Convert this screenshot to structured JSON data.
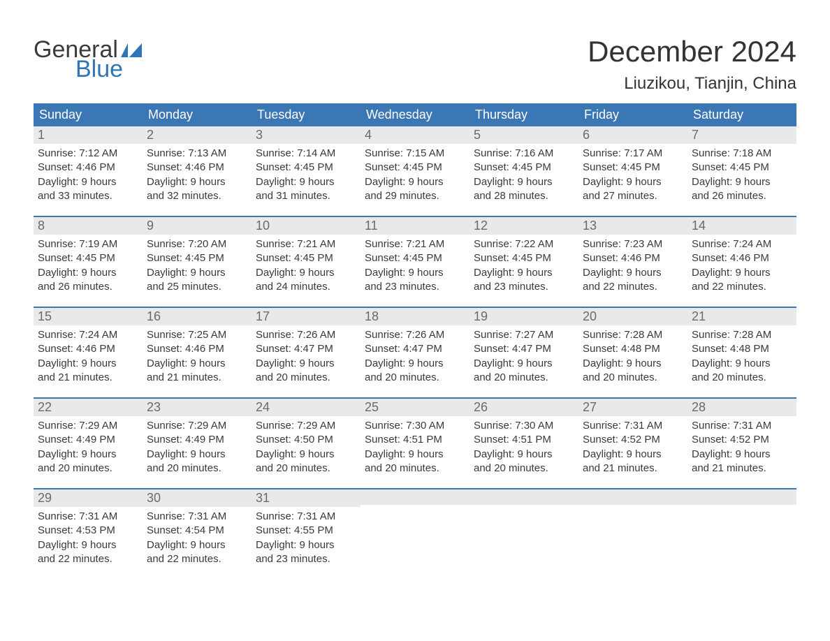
{
  "colors": {
    "header_bg": "#3b76b5",
    "header_text": "#ffffff",
    "daynum_bg": "#e9e9e9",
    "daynum_text": "#6a6a6a",
    "body_text": "#3a3a3a",
    "accent_blue": "#2e75b6",
    "page_bg": "#ffffff",
    "week_divider": "#3b76b5"
  },
  "typography": {
    "title_fontsize": 42,
    "location_fontsize": 24,
    "weekday_fontsize": 18,
    "daynum_fontsize": 18,
    "body_fontsize": 15,
    "logo_fontsize": 34
  },
  "logo": {
    "line1": "General",
    "line2": "Blue"
  },
  "title": "December 2024",
  "location": "Liuzikou, Tianjin, China",
  "weekdays": [
    "Sunday",
    "Monday",
    "Tuesday",
    "Wednesday",
    "Thursday",
    "Friday",
    "Saturday"
  ],
  "weeks": [
    [
      {
        "num": "1",
        "sunrise": "Sunrise: 7:12 AM",
        "sunset": "Sunset: 4:46 PM",
        "day1": "Daylight: 9 hours",
        "day2": "and 33 minutes."
      },
      {
        "num": "2",
        "sunrise": "Sunrise: 7:13 AM",
        "sunset": "Sunset: 4:46 PM",
        "day1": "Daylight: 9 hours",
        "day2": "and 32 minutes."
      },
      {
        "num": "3",
        "sunrise": "Sunrise: 7:14 AM",
        "sunset": "Sunset: 4:45 PM",
        "day1": "Daylight: 9 hours",
        "day2": "and 31 minutes."
      },
      {
        "num": "4",
        "sunrise": "Sunrise: 7:15 AM",
        "sunset": "Sunset: 4:45 PM",
        "day1": "Daylight: 9 hours",
        "day2": "and 29 minutes."
      },
      {
        "num": "5",
        "sunrise": "Sunrise: 7:16 AM",
        "sunset": "Sunset: 4:45 PM",
        "day1": "Daylight: 9 hours",
        "day2": "and 28 minutes."
      },
      {
        "num": "6",
        "sunrise": "Sunrise: 7:17 AM",
        "sunset": "Sunset: 4:45 PM",
        "day1": "Daylight: 9 hours",
        "day2": "and 27 minutes."
      },
      {
        "num": "7",
        "sunrise": "Sunrise: 7:18 AM",
        "sunset": "Sunset: 4:45 PM",
        "day1": "Daylight: 9 hours",
        "day2": "and 26 minutes."
      }
    ],
    [
      {
        "num": "8",
        "sunrise": "Sunrise: 7:19 AM",
        "sunset": "Sunset: 4:45 PM",
        "day1": "Daylight: 9 hours",
        "day2": "and 26 minutes."
      },
      {
        "num": "9",
        "sunrise": "Sunrise: 7:20 AM",
        "sunset": "Sunset: 4:45 PM",
        "day1": "Daylight: 9 hours",
        "day2": "and 25 minutes."
      },
      {
        "num": "10",
        "sunrise": "Sunrise: 7:21 AM",
        "sunset": "Sunset: 4:45 PM",
        "day1": "Daylight: 9 hours",
        "day2": "and 24 minutes."
      },
      {
        "num": "11",
        "sunrise": "Sunrise: 7:21 AM",
        "sunset": "Sunset: 4:45 PM",
        "day1": "Daylight: 9 hours",
        "day2": "and 23 minutes."
      },
      {
        "num": "12",
        "sunrise": "Sunrise: 7:22 AM",
        "sunset": "Sunset: 4:45 PM",
        "day1": "Daylight: 9 hours",
        "day2": "and 23 minutes."
      },
      {
        "num": "13",
        "sunrise": "Sunrise: 7:23 AM",
        "sunset": "Sunset: 4:46 PM",
        "day1": "Daylight: 9 hours",
        "day2": "and 22 minutes."
      },
      {
        "num": "14",
        "sunrise": "Sunrise: 7:24 AM",
        "sunset": "Sunset: 4:46 PM",
        "day1": "Daylight: 9 hours",
        "day2": "and 22 minutes."
      }
    ],
    [
      {
        "num": "15",
        "sunrise": "Sunrise: 7:24 AM",
        "sunset": "Sunset: 4:46 PM",
        "day1": "Daylight: 9 hours",
        "day2": "and 21 minutes."
      },
      {
        "num": "16",
        "sunrise": "Sunrise: 7:25 AM",
        "sunset": "Sunset: 4:46 PM",
        "day1": "Daylight: 9 hours",
        "day2": "and 21 minutes."
      },
      {
        "num": "17",
        "sunrise": "Sunrise: 7:26 AM",
        "sunset": "Sunset: 4:47 PM",
        "day1": "Daylight: 9 hours",
        "day2": "and 20 minutes."
      },
      {
        "num": "18",
        "sunrise": "Sunrise: 7:26 AM",
        "sunset": "Sunset: 4:47 PM",
        "day1": "Daylight: 9 hours",
        "day2": "and 20 minutes."
      },
      {
        "num": "19",
        "sunrise": "Sunrise: 7:27 AM",
        "sunset": "Sunset: 4:47 PM",
        "day1": "Daylight: 9 hours",
        "day2": "and 20 minutes."
      },
      {
        "num": "20",
        "sunrise": "Sunrise: 7:28 AM",
        "sunset": "Sunset: 4:48 PM",
        "day1": "Daylight: 9 hours",
        "day2": "and 20 minutes."
      },
      {
        "num": "21",
        "sunrise": "Sunrise: 7:28 AM",
        "sunset": "Sunset: 4:48 PM",
        "day1": "Daylight: 9 hours",
        "day2": "and 20 minutes."
      }
    ],
    [
      {
        "num": "22",
        "sunrise": "Sunrise: 7:29 AM",
        "sunset": "Sunset: 4:49 PM",
        "day1": "Daylight: 9 hours",
        "day2": "and 20 minutes."
      },
      {
        "num": "23",
        "sunrise": "Sunrise: 7:29 AM",
        "sunset": "Sunset: 4:49 PM",
        "day1": "Daylight: 9 hours",
        "day2": "and 20 minutes."
      },
      {
        "num": "24",
        "sunrise": "Sunrise: 7:29 AM",
        "sunset": "Sunset: 4:50 PM",
        "day1": "Daylight: 9 hours",
        "day2": "and 20 minutes."
      },
      {
        "num": "25",
        "sunrise": "Sunrise: 7:30 AM",
        "sunset": "Sunset: 4:51 PM",
        "day1": "Daylight: 9 hours",
        "day2": "and 20 minutes."
      },
      {
        "num": "26",
        "sunrise": "Sunrise: 7:30 AM",
        "sunset": "Sunset: 4:51 PM",
        "day1": "Daylight: 9 hours",
        "day2": "and 20 minutes."
      },
      {
        "num": "27",
        "sunrise": "Sunrise: 7:31 AM",
        "sunset": "Sunset: 4:52 PM",
        "day1": "Daylight: 9 hours",
        "day2": "and 21 minutes."
      },
      {
        "num": "28",
        "sunrise": "Sunrise: 7:31 AM",
        "sunset": "Sunset: 4:52 PM",
        "day1": "Daylight: 9 hours",
        "day2": "and 21 minutes."
      }
    ],
    [
      {
        "num": "29",
        "sunrise": "Sunrise: 7:31 AM",
        "sunset": "Sunset: 4:53 PM",
        "day1": "Daylight: 9 hours",
        "day2": "and 22 minutes."
      },
      {
        "num": "30",
        "sunrise": "Sunrise: 7:31 AM",
        "sunset": "Sunset: 4:54 PM",
        "day1": "Daylight: 9 hours",
        "day2": "and 22 minutes."
      },
      {
        "num": "31",
        "sunrise": "Sunrise: 7:31 AM",
        "sunset": "Sunset: 4:55 PM",
        "day1": "Daylight: 9 hours",
        "day2": "and 23 minutes."
      },
      null,
      null,
      null,
      null
    ]
  ]
}
